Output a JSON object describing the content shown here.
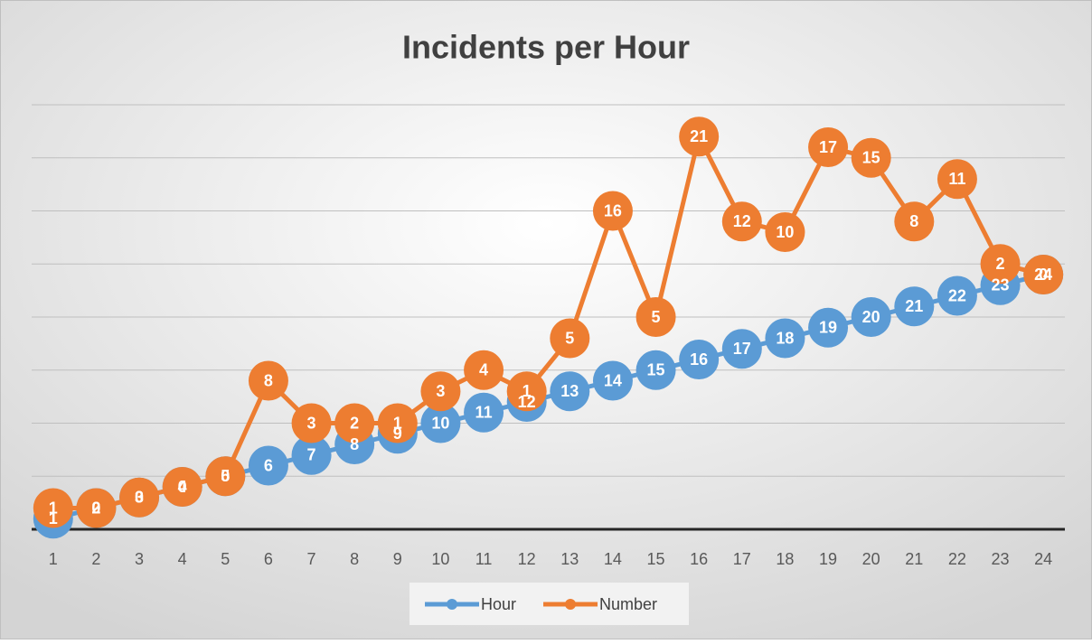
{
  "chart_data": {
    "type": "line",
    "stacked": true,
    "title": "Incidents per Hour",
    "categories": [
      1,
      2,
      3,
      4,
      5,
      6,
      7,
      8,
      9,
      10,
      11,
      12,
      13,
      14,
      15,
      16,
      17,
      18,
      19,
      20,
      21,
      22,
      23,
      24
    ],
    "series": [
      {
        "name": "Hour",
        "color": "#5b9bd5",
        "values": [
          1,
          2,
          3,
          4,
          5,
          6,
          7,
          8,
          9,
          10,
          11,
          12,
          13,
          14,
          15,
          16,
          17,
          18,
          19,
          20,
          21,
          22,
          23,
          24
        ]
      },
      {
        "name": "Number",
        "color": "#ed7d31",
        "values": [
          1,
          0,
          0,
          0,
          0,
          8,
          3,
          2,
          1,
          3,
          4,
          1,
          5,
          16,
          5,
          21,
          12,
          10,
          17,
          15,
          8,
          11,
          2,
          0
        ]
      }
    ],
    "ylim": [
      0,
      40
    ],
    "yticks": [
      0,
      5,
      10,
      15,
      20,
      25,
      30,
      35,
      40
    ],
    "grid": true,
    "legend": "bottom"
  }
}
